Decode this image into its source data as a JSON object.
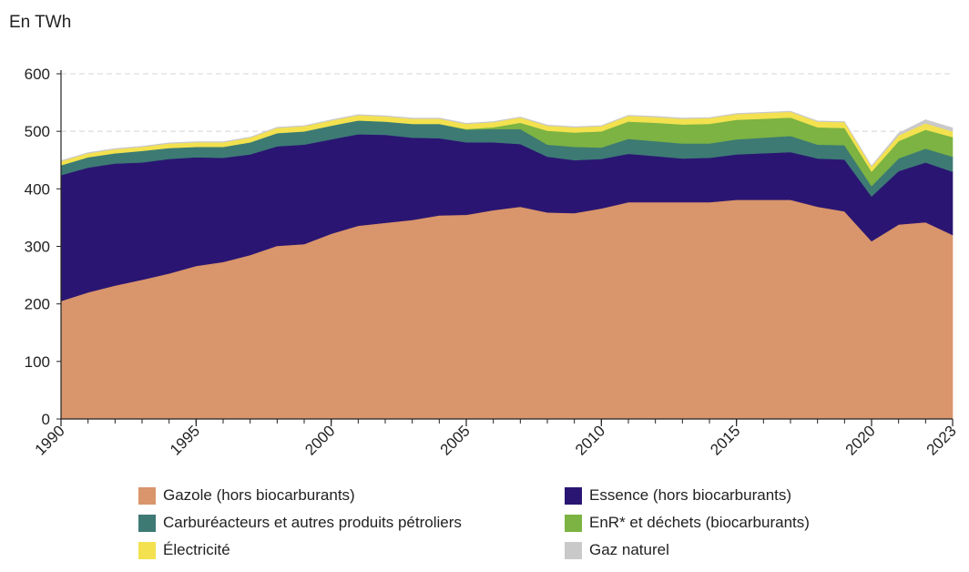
{
  "chart_data": {
    "type": "area",
    "stacked": true,
    "unit_label": "En TWh",
    "x": [
      1990,
      1991,
      1992,
      1993,
      1994,
      1995,
      1996,
      1997,
      1998,
      1999,
      2000,
      2001,
      2002,
      2003,
      2004,
      2005,
      2006,
      2007,
      2008,
      2009,
      2010,
      2011,
      2012,
      2013,
      2014,
      2015,
      2016,
      2017,
      2018,
      2019,
      2020,
      2021,
      2022,
      2023
    ],
    "x_ticks": [
      1990,
      1995,
      2000,
      2005,
      2010,
      2015,
      2020,
      2023
    ],
    "x_tick_labels": [
      "1990",
      "1995",
      "2000",
      "2005",
      "2010",
      "2015",
      "2020",
      "2023"
    ],
    "y_ticks": [
      0,
      100,
      200,
      300,
      400,
      500,
      600
    ],
    "y_tick_labels": [
      "0",
      "100",
      "200",
      "300",
      "400",
      "500",
      "600"
    ],
    "ylim": [
      0,
      600
    ],
    "grid": "horizontal dashed",
    "legend_position": "bottom",
    "series": [
      {
        "name": "Gazole (hors biocarburants)",
        "color": "#d9956b",
        "values": [
          205,
          220,
          232,
          242,
          253,
          266,
          273,
          285,
          301,
          304,
          322,
          336,
          341,
          346,
          354,
          355,
          363,
          369,
          359,
          358,
          366,
          377,
          377,
          377,
          377,
          381,
          381,
          381,
          369,
          361,
          309,
          338,
          342,
          320
        ]
      },
      {
        "name": "Essence (hors biocarburants)",
        "color": "#2a1672",
        "values": [
          219,
          217,
          212,
          204,
          199,
          189,
          181,
          175,
          173,
          173,
          164,
          159,
          153,
          143,
          134,
          126,
          118,
          109,
          97,
          92,
          86,
          84,
          80,
          76,
          77,
          79,
          81,
          83,
          84,
          90,
          78,
          93,
          104,
          110
        ]
      },
      {
        "name": "Carburéacteurs et autres produits pétroliers",
        "color": "#3d7a74",
        "values": [
          17,
          18,
          18,
          20,
          19,
          18,
          19,
          21,
          23,
          23,
          24,
          24,
          23,
          24,
          25,
          22,
          23,
          26,
          21,
          23,
          20,
          26,
          26,
          26,
          25,
          26,
          27,
          28,
          24,
          25,
          18,
          22,
          24,
          26
        ]
      },
      {
        "name": "EnR* et déchets (biocarburants)",
        "color": "#7cb342",
        "values": [
          0,
          0,
          0,
          0,
          0,
          0,
          0,
          0,
          0,
          0,
          0,
          0,
          0,
          0,
          0,
          1,
          3,
          11,
          24,
          25,
          28,
          30,
          32,
          33,
          34,
          34,
          33,
          32,
          30,
          30,
          25,
          30,
          33,
          34
        ]
      },
      {
        "name": "Électricité",
        "color": "#f3e14f",
        "values": [
          7,
          7,
          7,
          7,
          8,
          8,
          8,
          8,
          9,
          9,
          9,
          9,
          9,
          9,
          9,
          9,
          9,
          9,
          9,
          9,
          9,
          10,
          10,
          10,
          10,
          10,
          10,
          10,
          10,
          10,
          9,
          10,
          11,
          10
        ]
      },
      {
        "name": "Gaz naturel",
        "color": "#c9c9c9",
        "values": [
          1,
          1,
          1,
          1,
          1,
          1,
          1,
          1,
          1,
          1,
          1,
          1,
          1,
          1,
          1,
          1,
          1,
          1,
          1,
          1,
          1,
          1,
          1,
          1,
          1,
          1,
          1,
          1,
          1,
          1,
          1,
          4,
          6,
          6
        ]
      }
    ]
  }
}
